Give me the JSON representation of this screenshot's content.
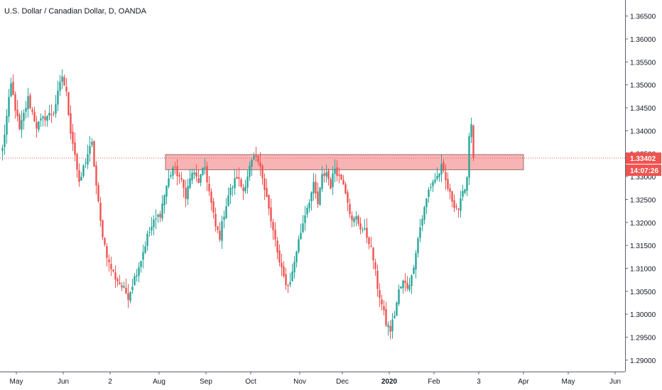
{
  "title": "U.S. Dollar / Canadian Dollar, D, OANDA",
  "chart_data": {
    "type": "candlestick",
    "y_ticks": [
      "1.36500",
      "1.36000",
      "1.35500",
      "1.35000",
      "1.34500",
      "1.34000",
      "1.33500",
      "1.33000",
      "1.32500",
      "1.32000",
      "1.31500",
      "1.31000",
      "1.30500",
      "1.30000",
      "1.29500",
      "1.29000"
    ],
    "ylim": [
      1.2875,
      1.3685
    ],
    "x_ticks": [
      {
        "label": "May",
        "bar": 7,
        "bold": false
      },
      {
        "label": "Jun",
        "bar": 29,
        "bold": false
      },
      {
        "label": "2",
        "bar": 51,
        "bold": false
      },
      {
        "label": "Aug",
        "bar": 74,
        "bold": false
      },
      {
        "label": "Sep",
        "bar": 96,
        "bold": false
      },
      {
        "label": "Oct",
        "bar": 117,
        "bold": false
      },
      {
        "label": "Nov",
        "bar": 140,
        "bold": false
      },
      {
        "label": "Dec",
        "bar": 160,
        "bold": false
      },
      {
        "label": "2020",
        "bar": 182,
        "bold": true
      },
      {
        "label": "Feb",
        "bar": 203,
        "bold": false
      },
      {
        "label": "3",
        "bar": 224,
        "bold": false
      },
      {
        "label": "Apr",
        "bar": 245,
        "bold": false
      },
      {
        "label": "May",
        "bar": 266,
        "bold": false
      },
      {
        "label": "Jun",
        "bar": 288,
        "bold": false
      }
    ],
    "last_price": {
      "value": 1.33402,
      "label": "1.33402"
    },
    "countdown": "14:07:26",
    "zone": {
      "from_bar": 77,
      "to_bar": 245,
      "low": 1.3315,
      "high": 1.3348
    },
    "colors": {
      "up": "#26a69a",
      "down": "#ef5350",
      "zone_fill": "#f7a7a7",
      "zone_border": "#9e6b6b",
      "price_line": "#ef5350",
      "tag": "#ef5350"
    },
    "path": [
      [
        0,
        1.336
      ],
      [
        4,
        1.35
      ],
      [
        8,
        1.34
      ],
      [
        12,
        1.347
      ],
      [
        16,
        1.341
      ],
      [
        20,
        1.343
      ],
      [
        24,
        1.344
      ],
      [
        28,
        1.352
      ],
      [
        30,
        1.348
      ],
      [
        32,
        1.34
      ],
      [
        34,
        1.335
      ],
      [
        36,
        1.328
      ],
      [
        38,
        1.332
      ],
      [
        40,
        1.335
      ],
      [
        42,
        1.337
      ],
      [
        44,
        1.328
      ],
      [
        46,
        1.32
      ],
      [
        48,
        1.315
      ],
      [
        50,
        1.311
      ],
      [
        53,
        1.308
      ],
      [
        56,
        1.306
      ],
      [
        59,
        1.304
      ],
      [
        62,
        1.308
      ],
      [
        65,
        1.312
      ],
      [
        68,
        1.317
      ],
      [
        71,
        1.32
      ],
      [
        74,
        1.322
      ],
      [
        77,
        1.328
      ],
      [
        80,
        1.332
      ],
      [
        83,
        1.33
      ],
      [
        86,
        1.326
      ],
      [
        89,
        1.331
      ],
      [
        92,
        1.329
      ],
      [
        95,
        1.332
      ],
      [
        98,
        1.324
      ],
      [
        100,
        1.319
      ],
      [
        102,
        1.317
      ],
      [
        104,
        1.322
      ],
      [
        106,
        1.326
      ],
      [
        108,
        1.328
      ],
      [
        110,
        1.33
      ],
      [
        113,
        1.327
      ],
      [
        116,
        1.332
      ],
      [
        118,
        1.334
      ],
      [
        120,
        1.333
      ],
      [
        122,
        1.33
      ],
      [
        124,
        1.326
      ],
      [
        126,
        1.32
      ],
      [
        128,
        1.316
      ],
      [
        130,
        1.311
      ],
      [
        132,
        1.308
      ],
      [
        134,
        1.306
      ],
      [
        136,
        1.309
      ],
      [
        138,
        1.314
      ],
      [
        140,
        1.318
      ],
      [
        142,
        1.322
      ],
      [
        144,
        1.325
      ],
      [
        146,
        1.328
      ],
      [
        148,
        1.324
      ],
      [
        150,
        1.33
      ],
      [
        152,
        1.331
      ],
      [
        154,
        1.328
      ],
      [
        156,
        1.332
      ],
      [
        158,
        1.33
      ],
      [
        160,
        1.329
      ],
      [
        162,
        1.325
      ],
      [
        164,
        1.32
      ],
      [
        166,
        1.321
      ],
      [
        168,
        1.319
      ],
      [
        170,
        1.318
      ],
      [
        172,
        1.316
      ],
      [
        174,
        1.312
      ],
      [
        176,
        1.306
      ],
      [
        178,
        1.302
      ],
      [
        180,
        1.298
      ],
      [
        182,
        1.2965
      ],
      [
        184,
        1.3
      ],
      [
        186,
        1.305
      ],
      [
        188,
        1.307
      ],
      [
        190,
        1.306
      ],
      [
        192,
        1.308
      ],
      [
        194,
        1.314
      ],
      [
        196,
        1.319
      ],
      [
        198,
        1.323
      ],
      [
        200,
        1.327
      ],
      [
        202,
        1.329
      ],
      [
        204,
        1.33
      ],
      [
        206,
        1.332
      ],
      [
        208,
        1.329
      ],
      [
        210,
        1.326
      ],
      [
        212,
        1.324
      ],
      [
        214,
        1.323
      ],
      [
        216,
        1.326
      ],
      [
        218,
        1.33
      ],
      [
        219,
        1.339
      ],
      [
        220,
        1.342
      ],
      [
        221,
        1.334
      ]
    ]
  }
}
